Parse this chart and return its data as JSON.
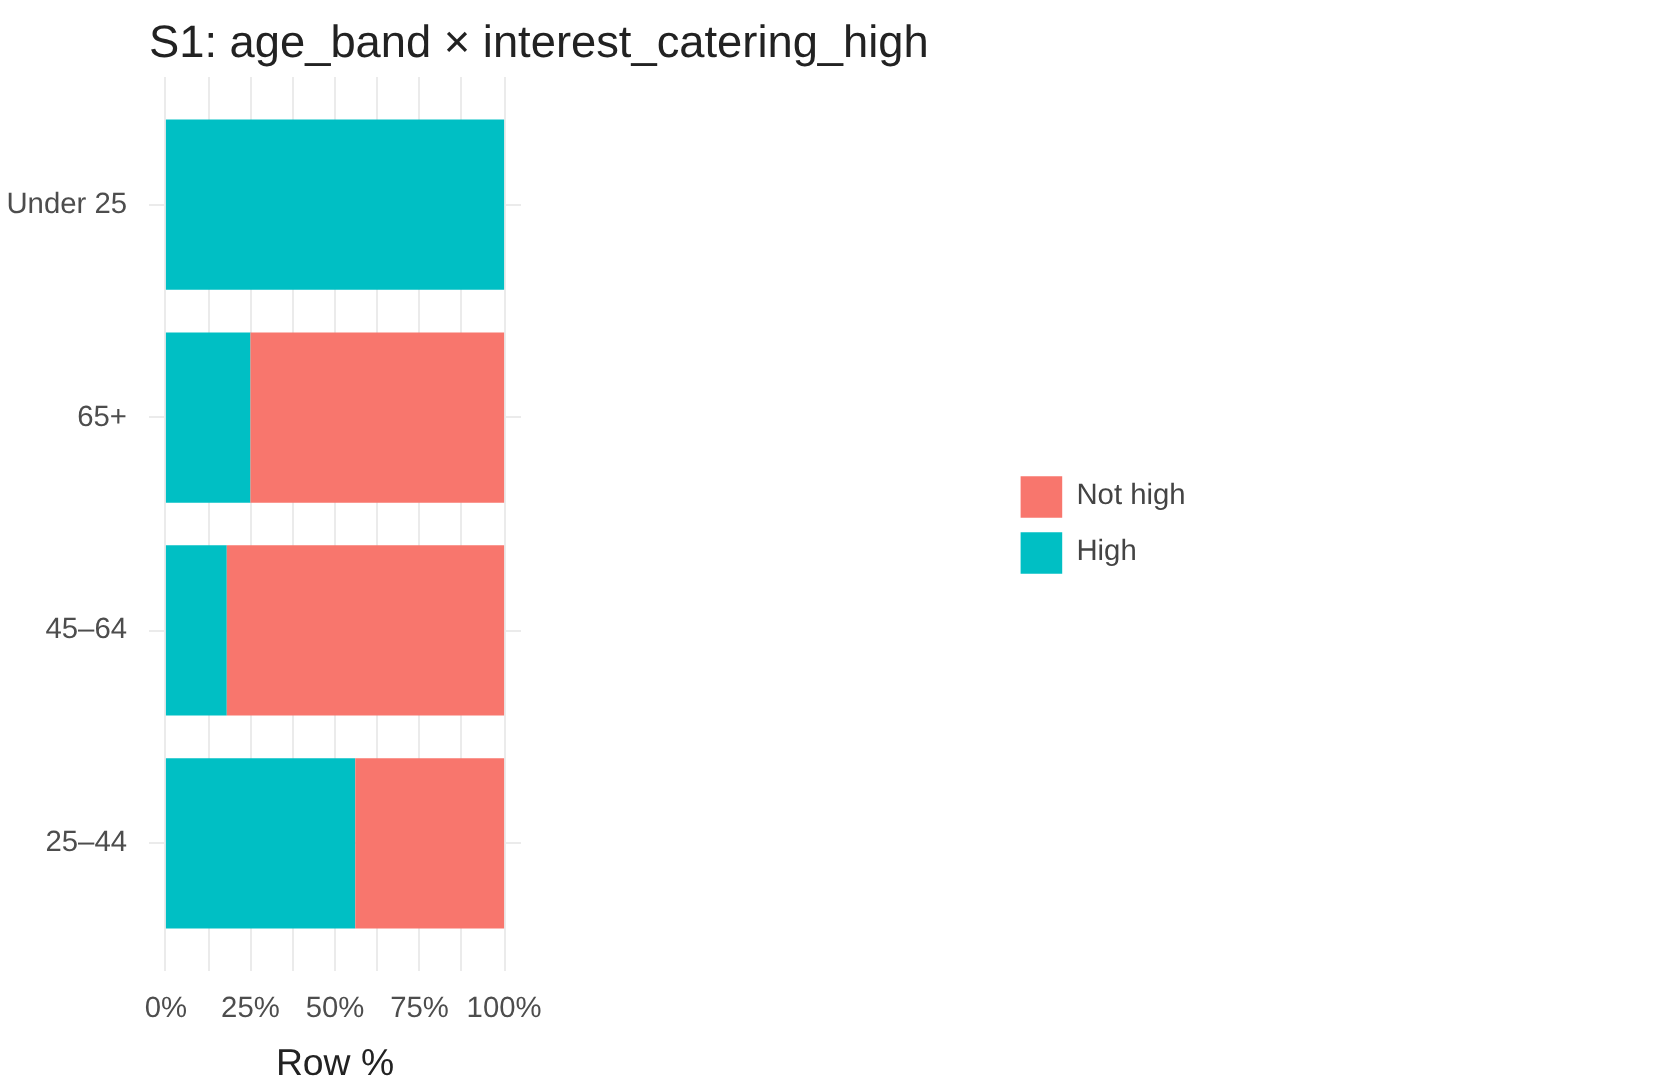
{
  "chart_data": {
    "type": "bar",
    "orientation": "horizontal",
    "stacked": true,
    "title": "S1: age_band × interest_catering_high",
    "xlabel": "Row %",
    "categories": [
      "Under 25",
      "65+",
      "45–64",
      "25–44"
    ],
    "series": [
      {
        "name": "High",
        "color": "#00bfc4",
        "values": [
          100,
          25,
          18,
          56
        ]
      },
      {
        "name": "Not high",
        "color": "#f8766d",
        "values": [
          0,
          75,
          82,
          44
        ]
      }
    ],
    "xlim": [
      -5,
      105
    ],
    "xticks": [
      {
        "value": 0,
        "label": "0%"
      },
      {
        "value": 12.5,
        "label": null
      },
      {
        "value": 25,
        "label": "25%"
      },
      {
        "value": 37.5,
        "label": null
      },
      {
        "value": 50,
        "label": "50%"
      },
      {
        "value": 62.5,
        "label": null
      },
      {
        "value": 75,
        "label": "75%"
      },
      {
        "value": 87.5,
        "label": null
      },
      {
        "value": 100,
        "label": "100%"
      }
    ],
    "grid": true,
    "legend": "right"
  }
}
